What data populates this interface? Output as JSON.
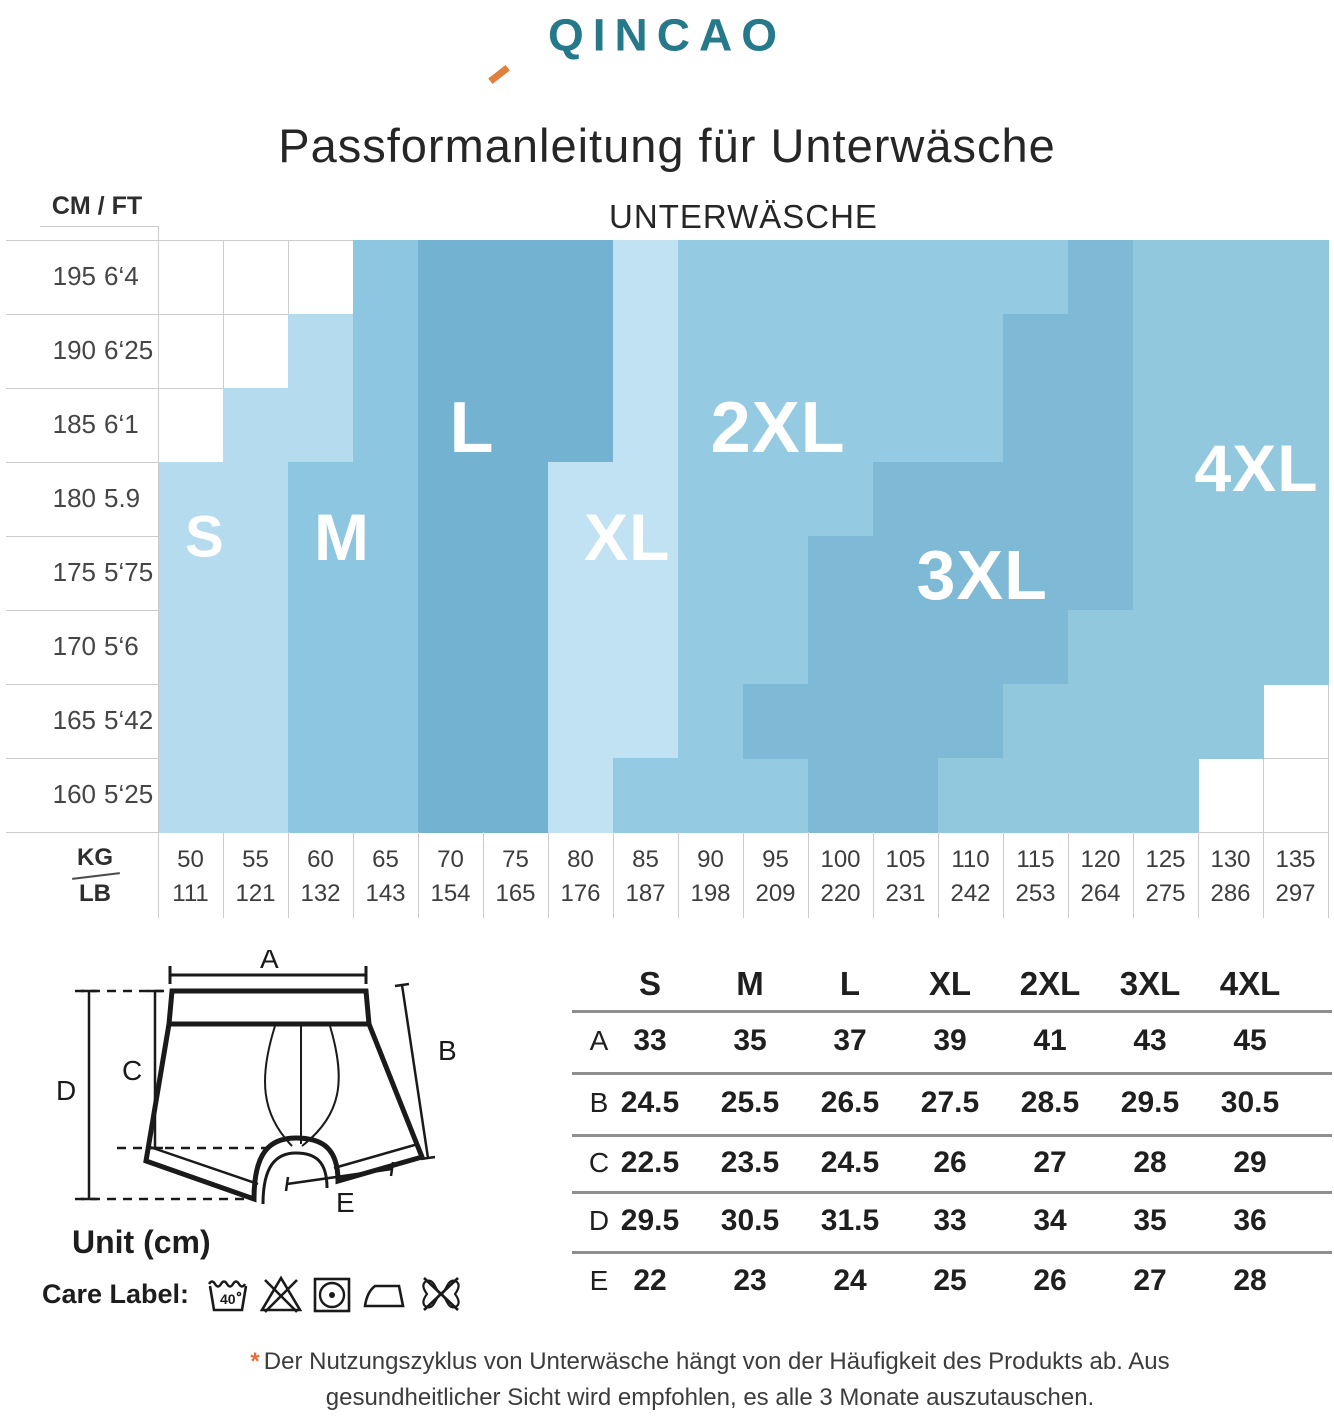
{
  "header": {
    "logo": "QINCAO",
    "title": "Passformanleitung für Unterwäsche",
    "subtitle": "UNTERWÄSCHE"
  },
  "chart_data": {
    "type": "heatmap",
    "title": "UNTERWÄSCHE",
    "y_axis": {
      "header": "CM / FT",
      "rows": [
        {
          "cm": "195",
          "ft": "6‘4"
        },
        {
          "cm": "190",
          "ft": "6‘25"
        },
        {
          "cm": "185",
          "ft": "6‘1"
        },
        {
          "cm": "180",
          "ft": "5.9"
        },
        {
          "cm": "175",
          "ft": "5‘75"
        },
        {
          "cm": "170",
          "ft": "5‘6"
        },
        {
          "cm": "165",
          "ft": "5‘42"
        },
        {
          "cm": "160",
          "ft": "5‘25"
        }
      ]
    },
    "x_axis": {
      "kg_label": "KG",
      "lb_label": "LB",
      "cols": [
        {
          "kg": "50",
          "lb": "111"
        },
        {
          "kg": "55",
          "lb": "121"
        },
        {
          "kg": "60",
          "lb": "132"
        },
        {
          "kg": "65",
          "lb": "143"
        },
        {
          "kg": "70",
          "lb": "154"
        },
        {
          "kg": "75",
          "lb": "165"
        },
        {
          "kg": "80",
          "lb": "176"
        },
        {
          "kg": "85",
          "lb": "187"
        },
        {
          "kg": "90",
          "lb": "198"
        },
        {
          "kg": "95",
          "lb": "209"
        },
        {
          "kg": "100",
          "lb": "220"
        },
        {
          "kg": "105",
          "lb": "231"
        },
        {
          "kg": "110",
          "lb": "242"
        },
        {
          "kg": "115",
          "lb": "253"
        },
        {
          "kg": "120",
          "lb": "264"
        },
        {
          "kg": "125",
          "lb": "275"
        },
        {
          "kg": "130",
          "lb": "286"
        },
        {
          "kg": "135",
          "lb": "297"
        }
      ]
    },
    "regions": [
      {
        "label": "S",
        "color": "#b5dcee",
        "font": 58,
        "label_col": 0.72,
        "label_row": 4.01,
        "rects": [
          [
            0,
            3,
            1,
            5
          ],
          [
            1,
            2,
            1,
            6
          ],
          [
            2,
            1,
            1,
            2
          ]
        ]
      },
      {
        "label": "M",
        "color": "#8dc6e1",
        "font": 66,
        "label_col": 2.83,
        "label_row": 4.01,
        "rects": [
          [
            2,
            3,
            1,
            5
          ],
          [
            3,
            0,
            1,
            8
          ]
        ]
      },
      {
        "label": "L",
        "color": "#73b2d1",
        "font": 72,
        "label_col": 4.83,
        "label_row": 2.54,
        "rects": [
          [
            4,
            0,
            2,
            8
          ],
          [
            6,
            0,
            1,
            3
          ]
        ]
      },
      {
        "label": "XL",
        "color": "#c0e2f2",
        "font": 66,
        "label_col": 7.22,
        "label_row": 4.01,
        "rects": [
          [
            6,
            3,
            1,
            5
          ],
          [
            7,
            0,
            1,
            7
          ]
        ]
      },
      {
        "label": "2XL",
        "color": "#95cbe2",
        "font": 72,
        "label_col": 9.54,
        "label_row": 2.54,
        "rects": [
          [
            7,
            7,
            1,
            1
          ],
          [
            8,
            0,
            1,
            8
          ],
          [
            9,
            0,
            1,
            6
          ],
          [
            9,
            7,
            1,
            1
          ],
          [
            10,
            0,
            1,
            4
          ],
          [
            11,
            0,
            1,
            3
          ],
          [
            12,
            0,
            1,
            3
          ],
          [
            13,
            0,
            1,
            1
          ]
        ]
      },
      {
        "label": "3XL",
        "color": "#7eb9d5",
        "font": 70,
        "label_col": 12.68,
        "label_row": 4.53,
        "rects": [
          [
            14,
            0,
            1,
            5
          ],
          [
            13,
            1,
            1,
            5
          ],
          [
            12,
            3,
            1,
            4
          ],
          [
            11,
            3,
            1,
            5
          ],
          [
            10,
            4,
            1,
            4
          ],
          [
            9,
            6,
            1,
            1
          ]
        ]
      },
      {
        "label": "4XL",
        "color": "#91c8de",
        "font": 66,
        "label_col": 16.9,
        "label_row": 3.08,
        "rects": [
          [
            15,
            0,
            3,
            5
          ],
          [
            14,
            5,
            4,
            1
          ],
          [
            13,
            6,
            4,
            1
          ],
          [
            12,
            7,
            4,
            1
          ]
        ]
      }
    ]
  },
  "diagram": {
    "dims": [
      "A",
      "B",
      "C",
      "D",
      "E"
    ],
    "unit_label": "Unit (cm)",
    "care_label": "Care Label:",
    "wash_temp": "40",
    "icons": [
      "wash-tub-40-icon",
      "do-not-bleach-icon",
      "tumble-dry-dot-icon",
      "iron-icon",
      "do-not-wring-icon"
    ]
  },
  "size_table": {
    "columns": [
      "S",
      "M",
      "L",
      "XL",
      "2XL",
      "3XL",
      "4XL"
    ],
    "rows": [
      {
        "label": "A",
        "values": [
          "33",
          "35",
          "37",
          "39",
          "41",
          "43",
          "45"
        ]
      },
      {
        "label": "B",
        "values": [
          "24.5",
          "25.5",
          "26.5",
          "27.5",
          "28.5",
          "29.5",
          "30.5"
        ]
      },
      {
        "label": "C",
        "values": [
          "22.5",
          "23.5",
          "24.5",
          "26",
          "27",
          "28",
          "29"
        ]
      },
      {
        "label": "D",
        "values": [
          "29.5",
          "30.5",
          "31.5",
          "33",
          "34",
          "35",
          "36"
        ]
      },
      {
        "label": "E",
        "values": [
          "22",
          "23",
          "24",
          "25",
          "26",
          "27",
          "28"
        ]
      }
    ]
  },
  "footnote": {
    "marker": "*",
    "line1": "Der Nutzungszyklus von Unterwäsche hängt von der Häufigkeit des Produkts ab. Aus",
    "line2": "gesundheitlicher Sicht wird empfohlen, es alle 3 Monate auszutauschen."
  }
}
